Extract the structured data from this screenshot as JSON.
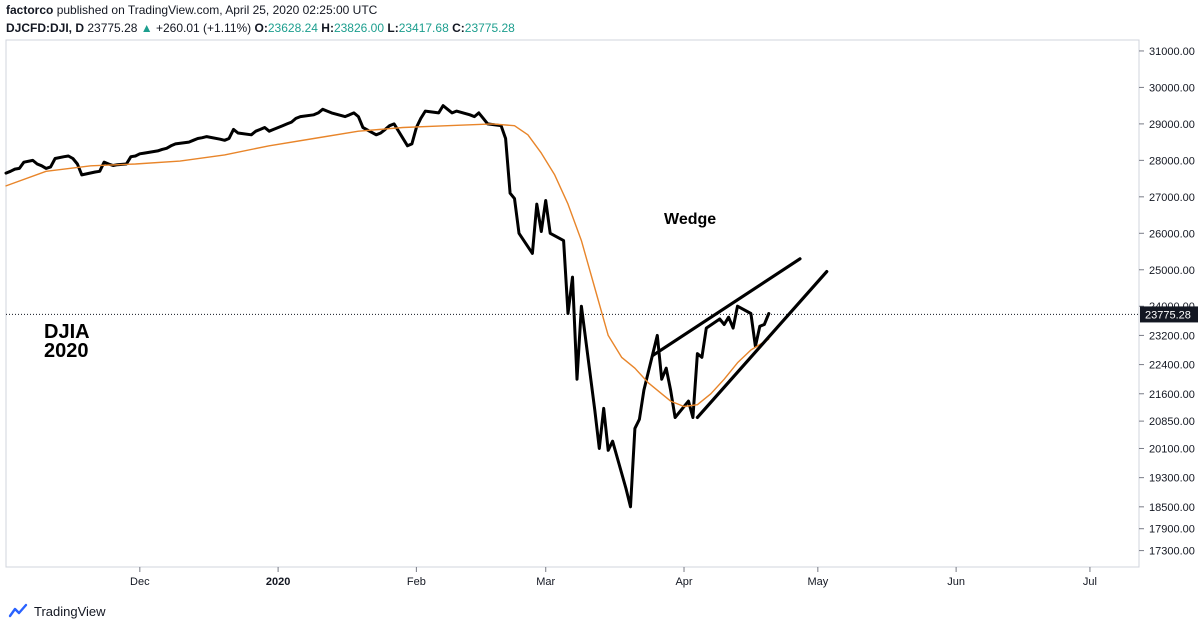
{
  "header": {
    "publisher": "factorco",
    "published_text": "published on TradingView.com, April 25, 2020 02:25:00 UTC",
    "symbol": "DJCFD:DJI, D",
    "last": "23775.28",
    "change": "+260.01 (+1.11%)",
    "o_label": "O:",
    "o_value": "23628.24",
    "h_label": "H:",
    "h_value": "23826.00",
    "l_label": "L:",
    "l_value": "23417.68",
    "c_label": "C:",
    "c_value": "23775.28"
  },
  "footer": {
    "brand": "TradingView"
  },
  "chart_data": {
    "type": "line",
    "annotations": [
      "Wedge",
      "DJIA",
      "2020"
    ],
    "price_tag": "23775.28",
    "ylim": [
      16850,
      31300
    ],
    "y_ticks": [
      31000,
      30000,
      29000,
      28000,
      27000,
      26000,
      25000,
      24000,
      23200,
      22400,
      21600,
      20850,
      20100,
      19300,
      18500,
      17900,
      17300
    ],
    "y_tick_labels": [
      "31000.00",
      "30000.00",
      "29000.00",
      "28000.00",
      "27000.00",
      "26000.00",
      "25000.00",
      "24000.00",
      "23200.00",
      "22400.00",
      "21600.00",
      "20850.00",
      "20100.00",
      "19300.00",
      "18500.00",
      "17900.00",
      "17300.00"
    ],
    "x_ticks": [
      {
        "label": "Dec",
        "day": 41
      },
      {
        "label": "2020",
        "day": 72
      },
      {
        "label": "Feb",
        "day": 103
      },
      {
        "label": "Mar",
        "day": 132
      },
      {
        "label": "Apr",
        "day": 163
      },
      {
        "label": "May",
        "day": 193
      },
      {
        "label": "Jun",
        "day": 224
      },
      {
        "label": "Jul",
        "day": 254
      }
    ],
    "xlim": [
      11,
      265
    ],
    "series": [
      {
        "key": "price",
        "color": "#000000",
        "x": [
          11,
          12,
          13,
          14,
          15,
          17,
          18,
          19,
          20,
          21,
          22,
          24,
          25,
          26,
          27,
          28,
          31,
          32,
          33,
          34,
          35,
          36,
          38,
          39,
          40,
          41,
          42,
          45,
          46,
          47,
          48,
          49,
          52,
          53,
          54,
          55,
          56,
          59,
          60,
          61,
          62,
          63,
          66,
          67,
          68,
          69,
          70,
          71,
          73,
          74,
          75,
          76,
          77,
          80,
          81,
          82,
          83,
          84,
          87,
          88,
          89,
          90,
          91,
          94,
          95,
          96,
          97,
          98,
          101,
          102,
          103,
          104,
          105,
          108,
          109,
          110,
          111,
          112,
          115,
          116,
          117,
          118,
          119,
          122,
          123,
          124,
          125,
          126,
          129,
          130,
          131,
          132,
          133,
          136,
          137,
          138,
          139,
          140,
          143,
          144,
          145,
          146,
          147,
          150,
          151,
          152,
          153,
          154,
          157,
          158,
          159,
          160,
          161,
          164,
          165,
          166,
          167,
          168,
          171,
          172,
          173,
          174,
          175,
          178,
          179,
          180,
          181,
          182
        ],
        "y": [
          27650,
          27700,
          27760,
          27780,
          27950,
          28000,
          27900,
          27850,
          27780,
          27820,
          28050,
          28100,
          28120,
          28050,
          27900,
          27600,
          27680,
          27700,
          27950,
          27900,
          27860,
          27880,
          27900,
          28100,
          28120,
          28180,
          28200,
          28260,
          28300,
          28330,
          28400,
          28450,
          28500,
          28550,
          28600,
          28620,
          28650,
          28580,
          28550,
          28600,
          28850,
          28750,
          28700,
          28800,
          28850,
          28900,
          28800,
          28850,
          28950,
          29000,
          29050,
          29150,
          29200,
          29250,
          29300,
          29400,
          29350,
          29300,
          29200,
          29250,
          29300,
          29200,
          28900,
          28700,
          28750,
          28850,
          28950,
          29000,
          28400,
          28450,
          28900,
          29150,
          29350,
          29300,
          29500,
          29400,
          29300,
          29350,
          29250,
          29200,
          29300,
          29150,
          29000,
          28950,
          28600,
          27100,
          26950,
          26000,
          25450,
          26800,
          26050,
          26900,
          26000,
          25800,
          23800,
          24800,
          22000,
          24000,
          21150,
          20100,
          21200,
          20050,
          20300,
          19000,
          18500,
          20650,
          20900,
          21700,
          23200,
          22000,
          22300,
          21700,
          20950,
          21400,
          20950,
          22700,
          22600,
          23400,
          23650,
          23500,
          23700,
          23400,
          24000,
          23800,
          22900,
          23450,
          23500,
          23800
        ],
        "stroke_width": 3
      },
      {
        "key": "moving-average",
        "color": "#e8852a",
        "x": [
          11,
          20,
          30,
          40,
          50,
          60,
          70,
          80,
          90,
          100,
          110,
          120,
          125,
          128,
          131,
          134,
          137,
          140,
          143,
          146,
          149,
          152,
          155,
          158,
          160,
          163,
          166,
          169,
          172,
          175,
          178,
          182
        ],
        "y": [
          27300,
          27700,
          27850,
          27900,
          27980,
          28150,
          28400,
          28600,
          28800,
          28900,
          28950,
          29000,
          28950,
          28700,
          28200,
          27600,
          26800,
          25800,
          24500,
          23200,
          22600,
          22300,
          21900,
          21600,
          21400,
          21250,
          21300,
          21600,
          22000,
          22450,
          22800,
          23100
        ],
        "stroke_width": 1.4
      }
    ],
    "trendlines": [
      {
        "x1": 156,
        "y1": 22650,
        "x2": 189,
        "y2": 25300
      },
      {
        "x1": 166,
        "y1": 20950,
        "x2": 195,
        "y2": 24950
      }
    ]
  }
}
